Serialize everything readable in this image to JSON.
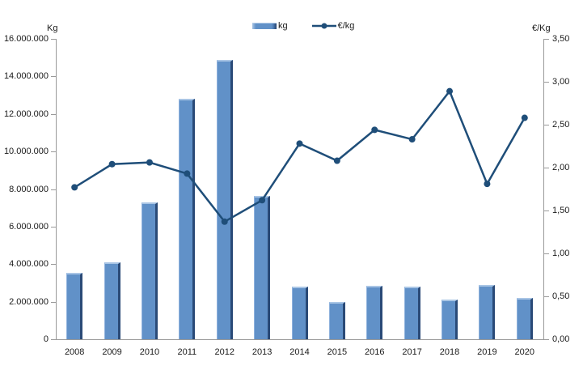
{
  "chart_data": {
    "type": "combo-bar-line",
    "categories": [
      "2008",
      "2009",
      "2010",
      "2011",
      "2012",
      "2013",
      "2014",
      "2015",
      "2016",
      "2017",
      "2018",
      "2019",
      "2020"
    ],
    "series": [
      {
        "name": "kg",
        "type": "bar",
        "axis": "left",
        "values": [
          3550000,
          4100000,
          7300000,
          12800000,
          14900000,
          7650000,
          2800000,
          2000000,
          2850000,
          2800000,
          2100000,
          2900000,
          2200000
        ]
      },
      {
        "name": "€/kg",
        "type": "line",
        "axis": "right",
        "values": [
          1.77,
          2.04,
          2.06,
          1.93,
          1.37,
          1.62,
          2.28,
          2.08,
          2.44,
          2.33,
          2.89,
          1.81,
          2.58
        ]
      }
    ],
    "left_axis": {
      "title": "Kg",
      "min": 0,
      "max": 16000000,
      "step": 2000000,
      "tick_labels_top_down": [
        "16.000.000",
        "14.000.000",
        "12.000.000",
        "10.000.000",
        "8.000.000",
        "6.000.000",
        "4.000.000",
        "2.000.000",
        "0"
      ]
    },
    "right_axis": {
      "title": "€/Kg",
      "min": 0,
      "max": 3.5,
      "step": 0.5,
      "tick_labels_top_down": [
        "3,50",
        "3,00",
        "2,50",
        "2,00",
        "1,50",
        "1,00",
        "0,50",
        "0,00"
      ]
    },
    "legend": {
      "position": "top",
      "items": [
        {
          "label": "kg",
          "swatch": "bar"
        },
        {
          "label": "€/kg",
          "swatch": "line-marker"
        }
      ]
    },
    "grid": false,
    "title": ""
  },
  "colors": {
    "bar_fill": "#6191c8",
    "bar_edge_dark": "#2a4a77",
    "bar_edge_light": "#a9c5e5",
    "line": "#1f4e79",
    "axis": "#9a9a9a",
    "text": "#1a1a1a",
    "background": "#ffffff"
  }
}
